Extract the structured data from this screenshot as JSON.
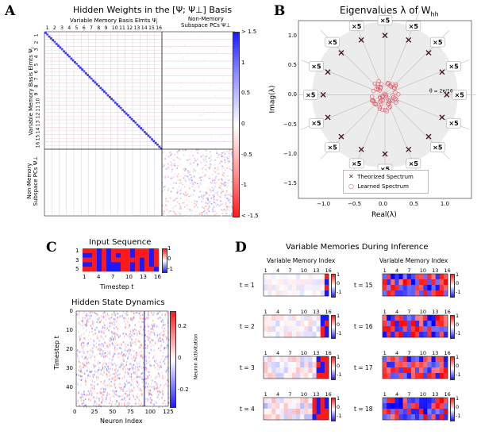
{
  "panelA": {
    "label": "A",
    "title": "Hidden Weights in the [Ψ; Ψ⊥] Basis",
    "top_label": "Variable Memory Basis Elmts Ψ",
    "top_label_sub": "l",
    "top_right_label": "Non-Memory",
    "top_right_label2": "Subspace PCs Ψ⊥",
    "left_label": "Variable Memory Basis Elmts Ψ",
    "left_label_sub": "l",
    "left_bottom_label": "Non-Memory",
    "left_bottom_label2": "Subspace PCs Ψ⊥",
    "col_ticks": [
      "1",
      "2",
      "3",
      "4",
      "5",
      "6",
      "7",
      "8",
      "9",
      "10",
      "11",
      "12",
      "13",
      "14",
      "15",
      "16"
    ],
    "row_ticks": [
      "1",
      "2",
      "3",
      "4",
      "5",
      "6",
      "7",
      "8",
      "9",
      "10",
      "11",
      "12",
      "13",
      "14",
      "15",
      "16"
    ],
    "colorbar": [
      "> 1.5",
      "1",
      "0.5",
      "0",
      "-0.5",
      "-1",
      "< -1.5"
    ]
  },
  "panelB": {
    "label": "B",
    "title": "Eigenvalues λ of W",
    "title_sub": "hh",
    "ylabel": "Imag(λ)",
    "xlabel": "Real(λ)",
    "multiplicity": "×5",
    "theta": "θ = 2π/16",
    "legend": [
      "Theorized Spectrum",
      "Learned Spectrum"
    ],
    "xticks": [
      "−1.0",
      "−0.5",
      "0.0",
      "0.5",
      "1.0"
    ],
    "yticks": [
      "1.0",
      "0.5",
      "0.0",
      "−0.5",
      "−1.0",
      "−1.5"
    ],
    "chart_data": {
      "type": "scatter",
      "title": "Eigenvalues λ of W_hh",
      "xlabel": "Real(λ)",
      "ylabel": "Imag(λ)",
      "xlim": [
        -1.4,
        1.4
      ],
      "ylim": [
        -1.75,
        1.25
      ],
      "series": [
        {
          "name": "Theorized Spectrum",
          "marker": "x",
          "points": "16 points on unit circle at angles k·2π/16, each ×5"
        },
        {
          "name": "Learned Spectrum",
          "marker": "o",
          "points": "clustered near origin, |λ| < 0.3"
        }
      ]
    }
  },
  "panelC": {
    "label": "C",
    "input_title": "Input Sequence",
    "input_xlabel": "Timestep t",
    "input_xticks": [
      "1",
      "4",
      "7",
      "10",
      "13",
      "16"
    ],
    "input_yticks": [
      "1",
      "3",
      "5"
    ],
    "input_cbar": [
      "1",
      "0",
      "-1"
    ],
    "dyn_title": "Hidden State Dynamics",
    "dyn_ylabel": "Timestep t",
    "dyn_xlabel": "Neuron Index",
    "dyn_xticks": [
      "0",
      "25",
      "50",
      "75",
      "100",
      "125"
    ],
    "dyn_yticks": [
      "0",
      "10",
      "20",
      "30",
      "40"
    ],
    "dyn_cbar": [
      "0.2",
      "0",
      "-0.2"
    ],
    "dyn_cbar_label": "Neuron Activitation"
  },
  "panelD": {
    "label": "D",
    "title": "Variable Memories During Inference",
    "col_header": "Variable Memory Index",
    "col_ticks": [
      "1",
      "4",
      "7",
      "10",
      "13",
      "16"
    ],
    "cbar": [
      "1",
      "0",
      "-1"
    ],
    "left_rows": [
      "t = 1",
      "t = 2",
      "t = 3",
      "t = 4"
    ],
    "right_rows": [
      "t = 15",
      "t = 16",
      "t = 17",
      "t = 18"
    ]
  }
}
